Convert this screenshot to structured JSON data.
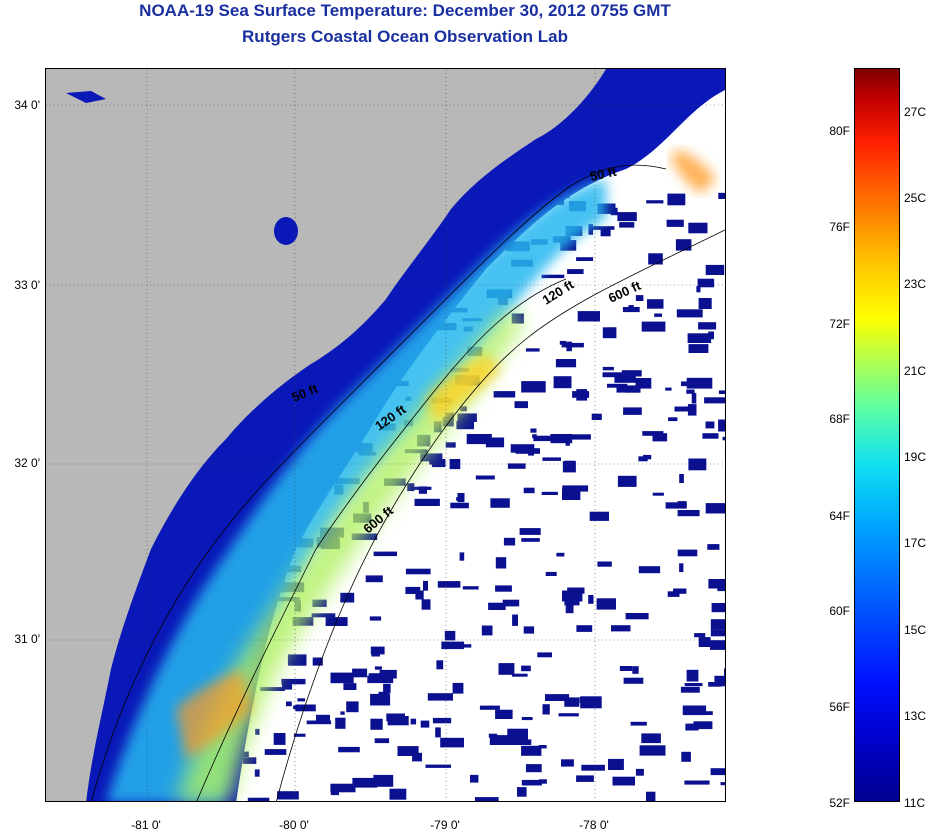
{
  "titles": {
    "line1": "NOAA-19 Sea Surface Temperature:  December 30, 2012 0755 GMT",
    "line2": "Rutgers Coastal Ocean Observation Lab"
  },
  "map": {
    "lat_ticks": [
      "34 0'",
      "33 0'",
      "32 0'",
      "31 0'"
    ],
    "lon_ticks": [
      "-81 0'",
      "-80 0'",
      "-79 0'",
      "-78 0'"
    ],
    "isobath_labels": [
      "50 ft",
      "120 ft",
      "600 ft",
      "50 ft",
      "120 ft",
      "600 ft"
    ],
    "colors": {
      "land": "#b8b8b8",
      "cloud_mask": "#ffffff",
      "cold_water": "#0a1090",
      "warm_core": "#ffe020"
    }
  },
  "colorbar": {
    "fahrenheit": [
      "80F",
      "76F",
      "72F",
      "68F",
      "64F",
      "60F",
      "56F",
      "52F"
    ],
    "celsius": [
      "27C",
      "25C",
      "23C",
      "21C",
      "19C",
      "17C",
      "15C",
      "13C",
      "11C"
    ],
    "range_c": [
      11,
      28
    ],
    "range_f": [
      52,
      82
    ]
  }
}
